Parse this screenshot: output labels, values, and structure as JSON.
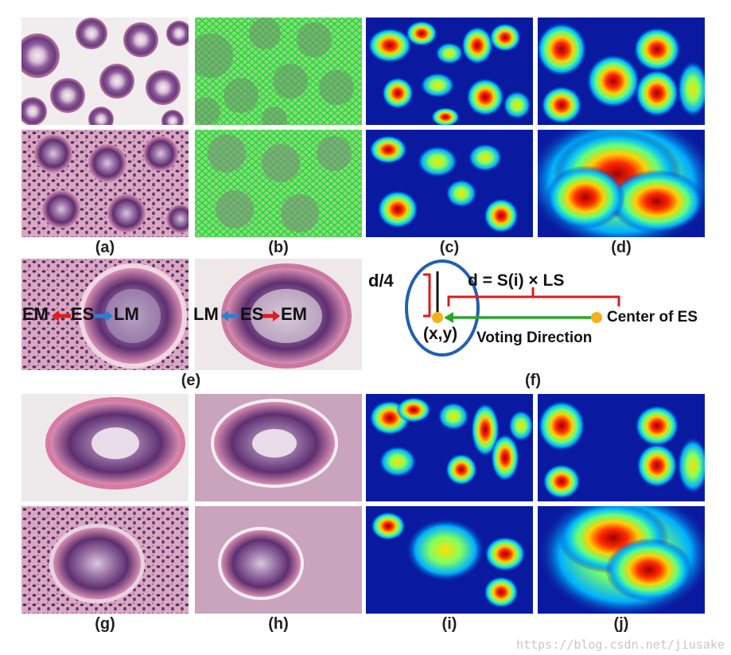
{
  "captions": {
    "a": "(a)",
    "b": "(b)",
    "c": "(c)",
    "d": "(d)",
    "e": "(e)",
    "f": "(f)",
    "g": "(g)",
    "h": "(h)",
    "i": "(i)",
    "j": "(j)"
  },
  "panel_e": {
    "left": {
      "em": "EM",
      "es": "ES",
      "lm": "LM"
    },
    "right": {
      "lm": "LM",
      "es": "ES",
      "em": "EM"
    }
  },
  "panel_f": {
    "d_over_4": "d/4",
    "distance_formula": "d = S(i) × LS",
    "xy": "(x,y)",
    "center_label": "Center of ES",
    "voting_label": "Voting Direction"
  },
  "colors": {
    "tissue_pink": "#e9c6d6",
    "gland_purple": "#7a4a8c",
    "heat_blue": "#0a1aa0",
    "arrow_red": "#e01b1b",
    "arrow_blue": "#2a7fd0",
    "arrow_green": "#2aa52a",
    "ellipse_blue": "#1f5fb5",
    "dot_orange": "#f2b21c"
  },
  "watermark": "https://blog.csdn.net/jiusake"
}
